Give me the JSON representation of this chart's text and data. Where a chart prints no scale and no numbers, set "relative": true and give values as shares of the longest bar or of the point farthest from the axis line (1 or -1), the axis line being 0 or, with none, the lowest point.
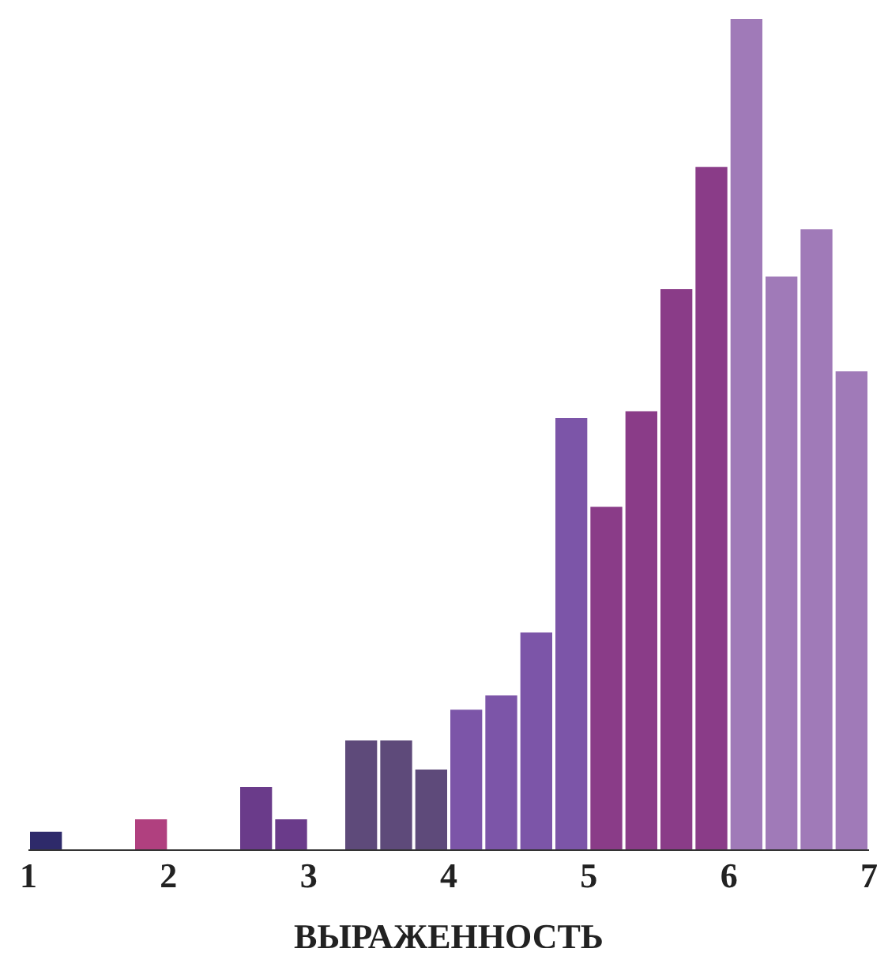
{
  "chart_data": {
    "type": "bar",
    "xlabel": "ВЫРАЖЕННОСТЬ",
    "relative": true,
    "x": [
      1.125,
      1.875,
      2.625,
      2.875,
      3.375,
      3.625,
      3.875,
      4.125,
      4.375,
      4.625,
      4.875,
      5.125,
      5.375,
      5.625,
      5.875,
      6.125,
      6.375,
      6.625,
      6.875
    ],
    "values": [
      0.022,
      0.037,
      0.076,
      0.037,
      0.132,
      0.132,
      0.097,
      0.169,
      0.186,
      0.262,
      0.52,
      0.413,
      0.528,
      0.675,
      0.822,
      1,
      0.69,
      0.747,
      0.576
    ],
    "colors": [
      "#2e2a6a",
      "#b0407f",
      "#6a3b8a",
      "#6a3b8a",
      "#5e4a7a",
      "#5e4a7a",
      "#5e4a7a",
      "#7c55a8",
      "#7c55a8",
      "#7c55a8",
      "#7c55a8",
      "#8a3c88",
      "#8a3c88",
      "#8a3c88",
      "#8a3c88",
      "#a07ab8",
      "#a07ab8",
      "#a07ab8",
      "#a07ab8"
    ],
    "xlim": [
      1,
      7
    ],
    "xticks": [
      1,
      2,
      3,
      4,
      5,
      6,
      7
    ]
  }
}
